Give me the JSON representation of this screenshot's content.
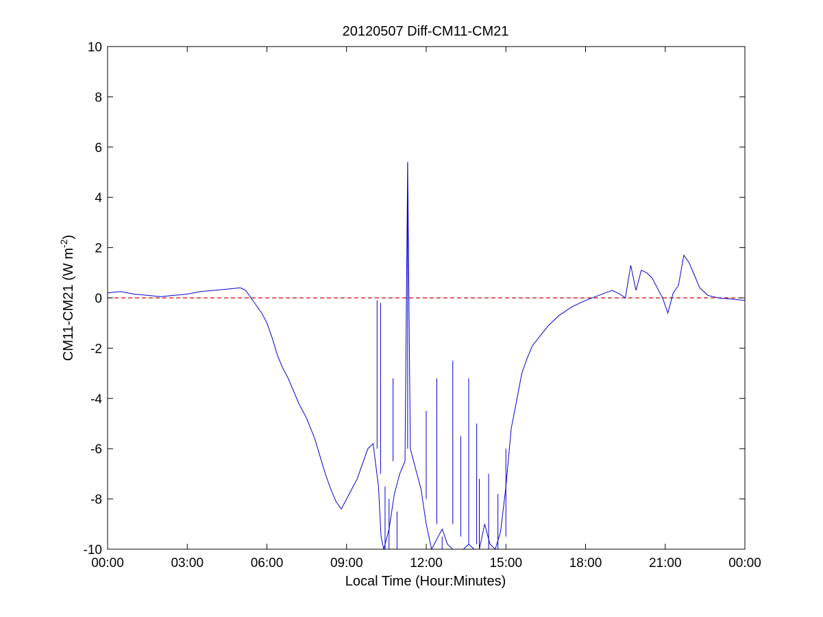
{
  "chart_data": {
    "type": "line",
    "title": "20120507 Diff-CM11-CM21",
    "xlabel": "Local Time (Hour:Minutes)",
    "ylabel": {
      "main": "CM11-CM21 (W m",
      "sup": "-2",
      "close": ")"
    },
    "xlim": [
      0,
      24
    ],
    "ylim": [
      -10,
      10
    ],
    "x_unit": "hours",
    "x_ticks": [
      0,
      3,
      6,
      9,
      12,
      15,
      18,
      21,
      24
    ],
    "x_tick_labels": [
      "00:00",
      "03:00",
      "06:00",
      "09:00",
      "12:00",
      "15:00",
      "18:00",
      "21:00",
      "00:00"
    ],
    "y_ticks": [
      -10,
      -8,
      -6,
      -4,
      -2,
      0,
      2,
      4,
      6,
      8,
      10
    ],
    "y_tick_labels": [
      "-10",
      "-8",
      "-6",
      "-4",
      "-2",
      "0",
      "2",
      "4",
      "6",
      "8",
      "10"
    ],
    "grid": false,
    "reference_line": {
      "y": 0,
      "color": "#cc0000",
      "style": "dashed"
    },
    "series": [
      {
        "color": "#0000cc",
        "x": [
          0,
          0.5,
          1,
          1.5,
          2,
          2.5,
          3,
          3.5,
          4,
          4.5,
          5,
          5.2,
          5.4,
          5.6,
          5.8,
          6,
          6.2,
          6.4,
          6.6,
          6.8,
          7,
          7.2,
          7.5,
          7.8,
          8,
          8.2,
          8.4,
          8.6,
          8.8,
          9,
          9.2,
          9.4,
          9.6,
          9.8,
          10,
          10.2,
          10.3,
          10.4,
          10.6,
          10.8,
          11,
          11.2,
          11.3,
          11.4,
          11.6,
          11.8,
          12,
          12.2,
          12.4,
          12.6,
          12.8,
          13,
          13.2,
          13.4,
          13.6,
          13.8,
          14,
          14.2,
          14.4,
          14.6,
          14.8,
          15,
          15.2,
          15.4,
          15.6,
          15.8,
          16,
          16.3,
          16.6,
          17,
          17.5,
          18,
          18.5,
          19,
          19.3,
          19.5,
          19.7,
          19.9,
          20.1,
          20.3,
          20.5,
          20.7,
          20.9,
          21.1,
          21.3,
          21.5,
          21.7,
          21.9,
          22.1,
          22.3,
          22.6,
          23,
          23.5,
          24
        ],
        "y": [
          0.2,
          0.25,
          0.15,
          0.1,
          0.05,
          0.1,
          0.15,
          0.25,
          0.3,
          0.35,
          0.4,
          0.3,
          0.0,
          -0.3,
          -0.6,
          -1.0,
          -1.6,
          -2.3,
          -2.8,
          -3.2,
          -3.7,
          -4.2,
          -4.8,
          -5.6,
          -6.3,
          -7.0,
          -7.6,
          -8.1,
          -8.4,
          -8.0,
          -7.6,
          -7.2,
          -6.6,
          -6.0,
          -5.8,
          -7.5,
          -9.5,
          -10,
          -9.2,
          -7.8,
          -7.0,
          -6.5,
          5.4,
          -6.0,
          -6.8,
          -7.6,
          -9.0,
          -10,
          -9.6,
          -9.2,
          -9.8,
          -10,
          -10,
          -10,
          -9.8,
          -10,
          -10,
          -9.0,
          -9.8,
          -10,
          -9.3,
          -7.5,
          -5.2,
          -4.1,
          -3.0,
          -2.4,
          -1.9,
          -1.5,
          -1.1,
          -0.7,
          -0.35,
          -0.1,
          0.1,
          0.3,
          0.15,
          0.0,
          1.3,
          0.3,
          1.1,
          1.0,
          0.8,
          0.4,
          0.0,
          -0.6,
          0.2,
          0.5,
          1.7,
          1.4,
          0.9,
          0.4,
          0.1,
          0.0,
          -0.05,
          -0.1
        ]
      }
    ],
    "spikes": [
      {
        "x": 10.15,
        "y_from": -6.0,
        "y_to": -0.1
      },
      {
        "x": 10.28,
        "y_from": -7.0,
        "y_to": -0.2
      },
      {
        "x": 10.45,
        "y_from": -7.5,
        "y_to": -10
      },
      {
        "x": 10.6,
        "y_from": -8.0,
        "y_to": -10
      },
      {
        "x": 10.75,
        "y_from": -6.5,
        "y_to": -3.2
      },
      {
        "x": 10.9,
        "y_from": -8.5,
        "y_to": -10
      },
      {
        "x": 11.3,
        "y_from": -6.0,
        "y_to": 5.4
      },
      {
        "x": 12.0,
        "y_from": -8.0,
        "y_to": -4.5
      },
      {
        "x": 12.4,
        "y_from": -9.0,
        "y_to": -3.2
      },
      {
        "x": 12.6,
        "y_from": -9.5,
        "y_to": -10
      },
      {
        "x": 13.0,
        "y_from": -9.0,
        "y_to": -2.5
      },
      {
        "x": 13.3,
        "y_from": -9.5,
        "y_to": -5.5
      },
      {
        "x": 13.6,
        "y_from": -9.8,
        "y_to": -3.2
      },
      {
        "x": 13.9,
        "y_from": -9.8,
        "y_to": -5.0
      },
      {
        "x": 14.0,
        "y_from": -10,
        "y_to": -7.2
      },
      {
        "x": 14.35,
        "y_from": -10,
        "y_to": -7.0
      },
      {
        "x": 14.7,
        "y_from": -10,
        "y_to": -7.8
      },
      {
        "x": 15.0,
        "y_from": -9.5,
        "y_to": -6.0
      }
    ]
  }
}
